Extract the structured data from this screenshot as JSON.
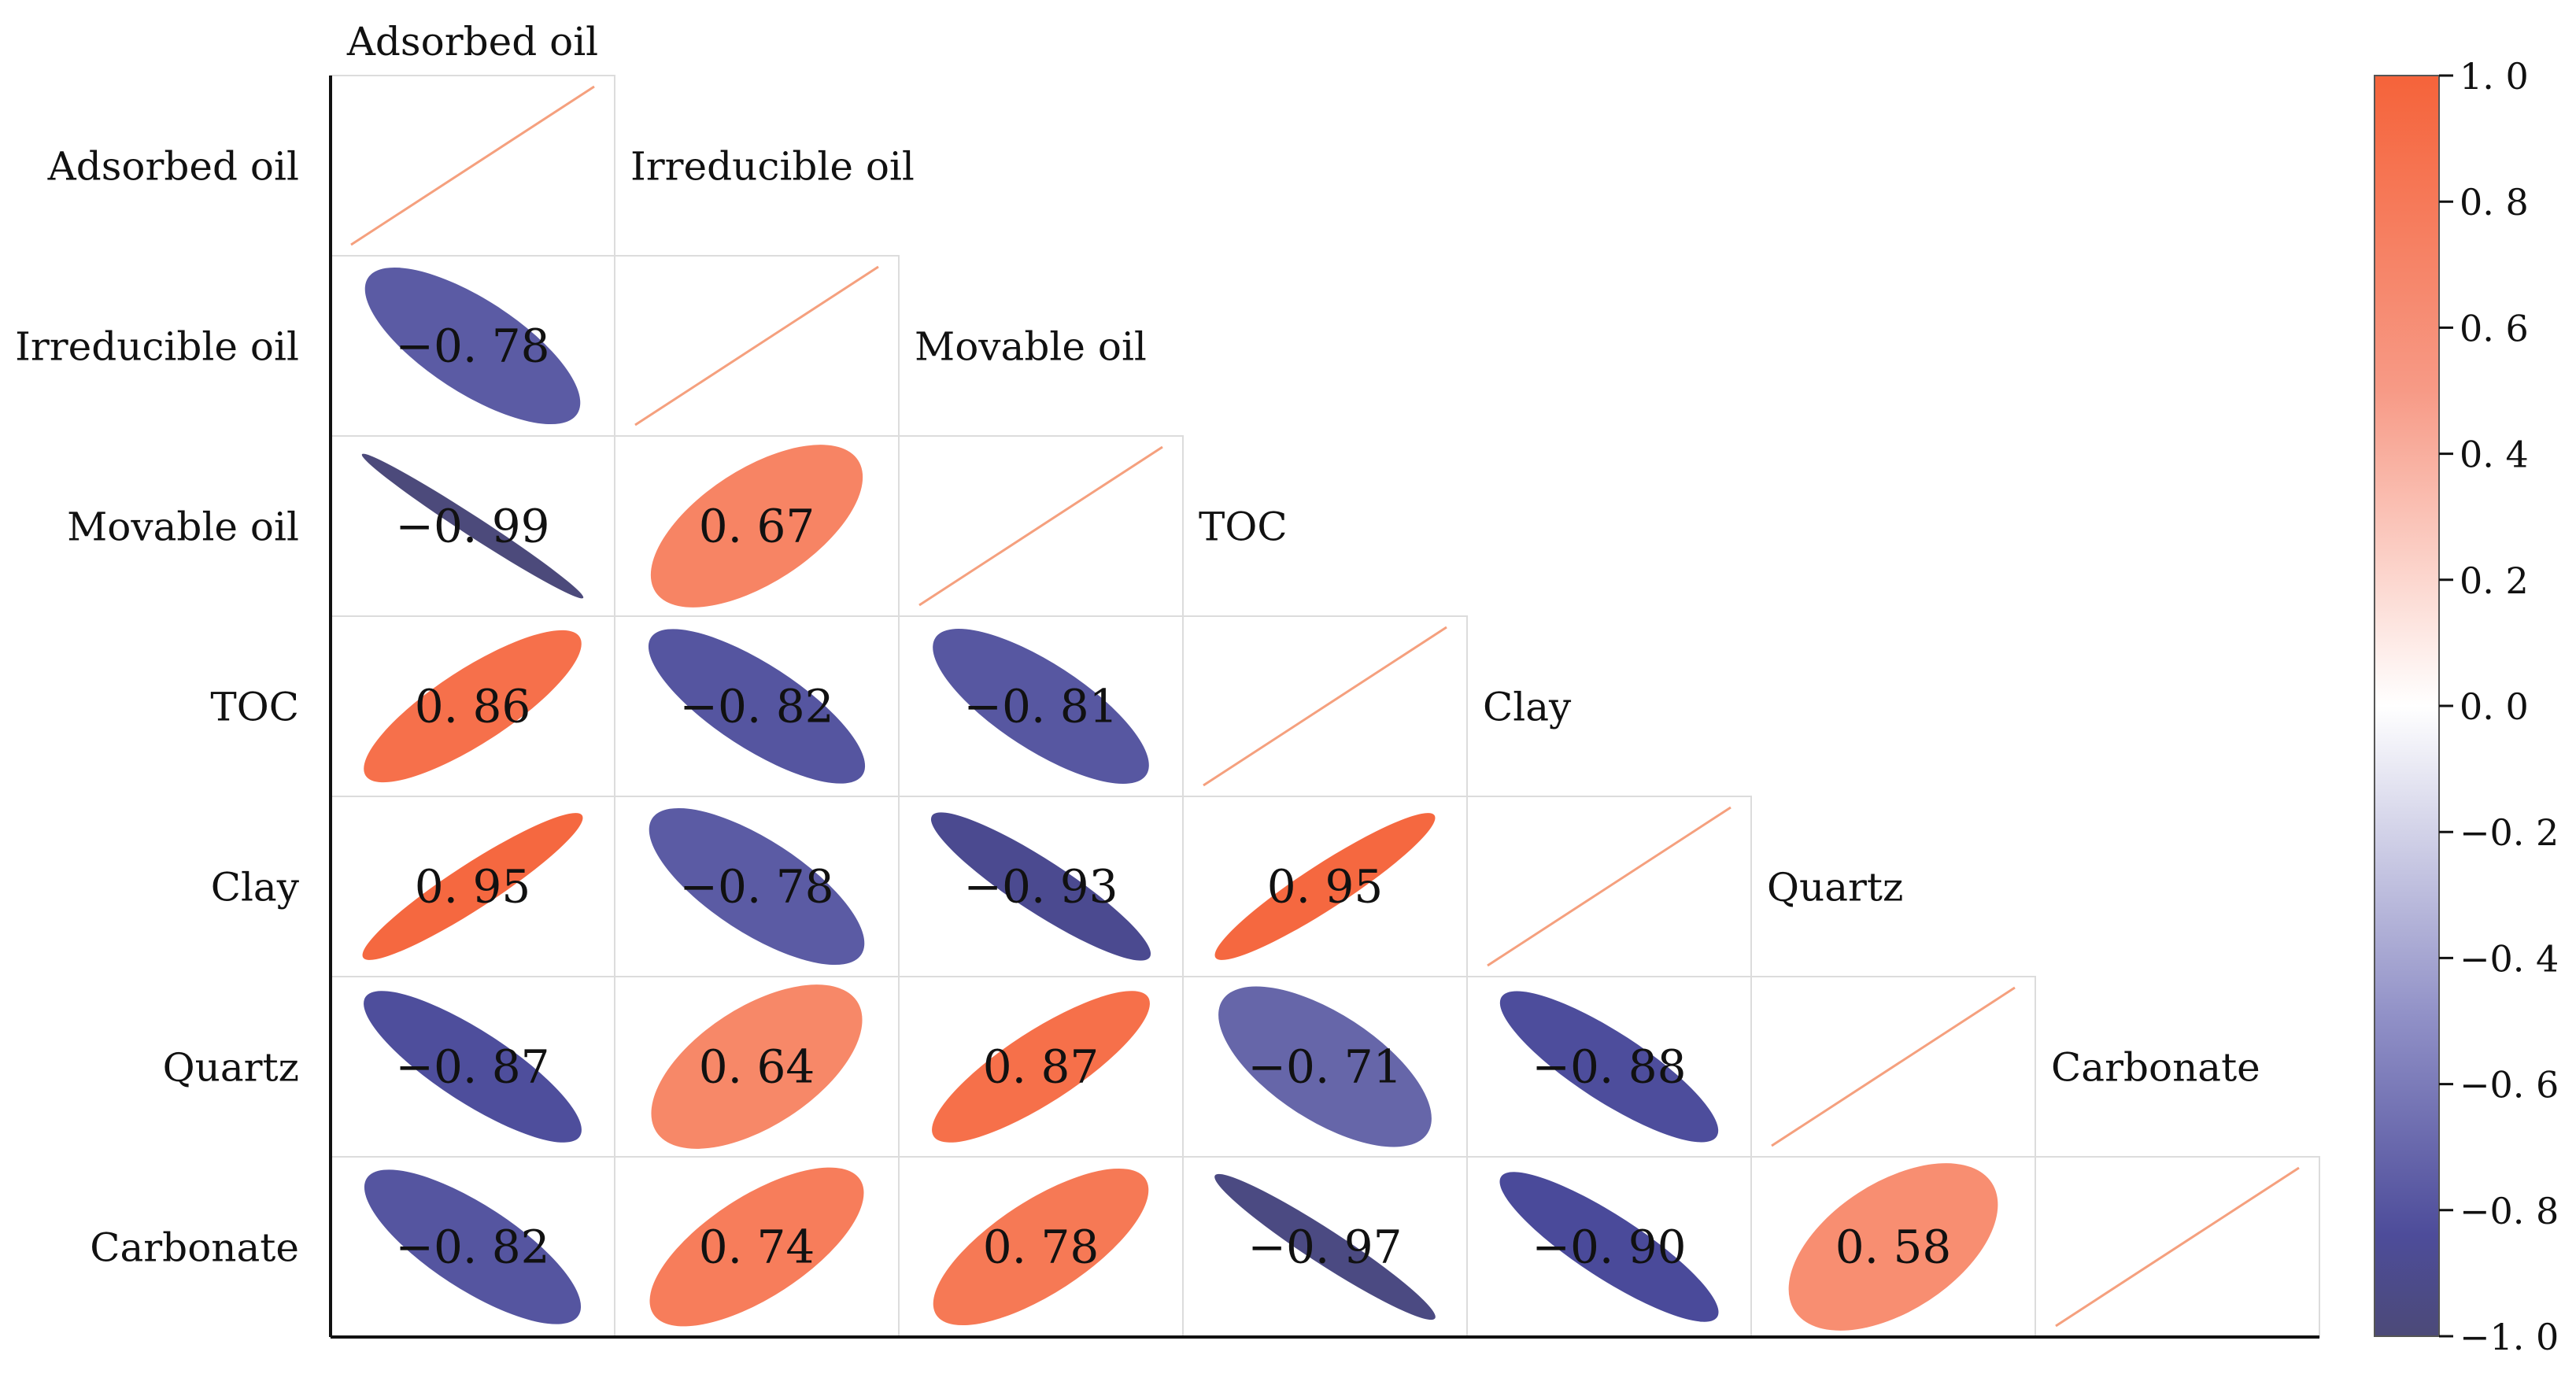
{
  "chart_data": {
    "type": "heatmap",
    "subtype": "correlation-ellipse-lower-triangle",
    "variables": [
      "Adsorbed oil",
      "Irreducible oil",
      "Movable oil",
      "TOC",
      "Clay",
      "Quartz",
      "Carbonate"
    ],
    "matrix": [
      [
        1.0,
        -0.78,
        -0.99,
        0.86,
        0.95,
        -0.87,
        -0.82
      ],
      [
        -0.78,
        1.0,
        0.67,
        -0.82,
        -0.78,
        0.64,
        0.74
      ],
      [
        -0.99,
        0.67,
        1.0,
        -0.81,
        -0.93,
        0.87,
        0.78
      ],
      [
        0.86,
        -0.82,
        -0.81,
        1.0,
        0.95,
        -0.71,
        -0.97
      ],
      [
        0.95,
        -0.78,
        -0.93,
        0.95,
        1.0,
        -0.88,
        -0.9
      ],
      [
        -0.87,
        0.64,
        0.87,
        -0.71,
        -0.88,
        1.0,
        0.58
      ],
      [
        -0.82,
        0.74,
        0.78,
        -0.97,
        -0.9,
        0.58,
        1.0
      ]
    ],
    "cell_labels": [
      [
        "",
        "",
        "",
        "",
        "",
        "",
        ""
      ],
      [
        "−0. 78",
        "",
        "",
        "",
        "",
        "",
        ""
      ],
      [
        "−0. 99",
        "0. 67",
        "",
        "",
        "",
        "",
        ""
      ],
      [
        "0. 86",
        "−0. 82",
        "−0. 81",
        "",
        "",
        "",
        ""
      ],
      [
        "0. 95",
        "−0. 78",
        "−0. 93",
        "0. 95",
        "",
        "",
        ""
      ],
      [
        "−0. 87",
        "0. 64",
        "0. 87",
        "−0. 71",
        "−0. 88",
        "",
        ""
      ],
      [
        "−0. 82",
        "0. 74",
        "0. 78",
        "−0. 97",
        "−0. 90",
        "0. 58",
        ""
      ]
    ],
    "colorbar": {
      "range": [
        -1.0,
        1.0
      ],
      "ticks": [
        1.0,
        0.8,
        0.6,
        0.4,
        0.2,
        0.0,
        -0.2,
        -0.4,
        -0.6,
        -0.8,
        -1.0
      ],
      "tick_labels": [
        "1. 0",
        "0. 8",
        "0. 6",
        "0. 4",
        "0. 2",
        "0. 0",
        "−0. 2",
        "−0. 4",
        "−0. 6",
        "−0. 8",
        "−1. 0"
      ],
      "positive_color": "#f5633a",
      "zero_color": "#ffffff",
      "negative_color": "#4a4a9a",
      "deep_negative_color": "#4c4a78"
    },
    "diagonal_line_color": "#f5a07e"
  }
}
